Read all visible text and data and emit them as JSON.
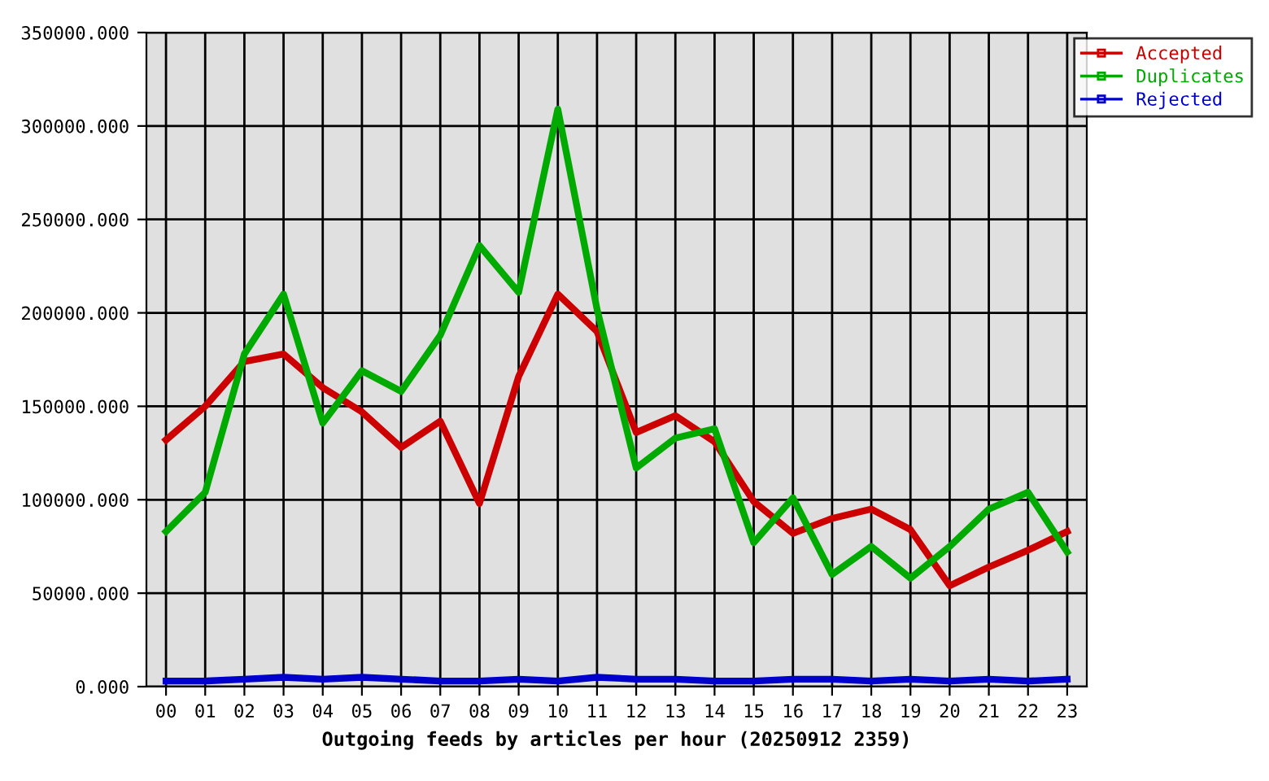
{
  "chart_data": {
    "type": "line",
    "xlabel": "Outgoing feeds by articles per hour (20250912 2359)",
    "categories": [
      "00",
      "01",
      "02",
      "03",
      "04",
      "05",
      "06",
      "07",
      "08",
      "09",
      "10",
      "11",
      "12",
      "13",
      "14",
      "15",
      "16",
      "17",
      "18",
      "19",
      "20",
      "21",
      "22",
      "23"
    ],
    "series": [
      {
        "name": "Accepted",
        "color": "#cc0000",
        "values": [
          132000,
          150000,
          174000,
          178000,
          160000,
          147000,
          128000,
          142000,
          98000,
          166000,
          210000,
          190000,
          136000,
          145000,
          131000,
          99000,
          82000,
          90000,
          95000,
          84000,
          54000,
          64000,
          73000,
          83000
        ]
      },
      {
        "name": "Duplicates",
        "color": "#00aa00",
        "values": [
          83000,
          104000,
          178000,
          210000,
          141000,
          169000,
          158000,
          188000,
          236000,
          211000,
          309000,
          202000,
          117000,
          133000,
          138000,
          77000,
          101000,
          60000,
          75000,
          58000,
          75000,
          95000,
          104000,
          72000
        ]
      },
      {
        "name": "Rejected",
        "color": "#0000cc",
        "values": [
          3000,
          3000,
          4000,
          5000,
          4000,
          5000,
          4000,
          3000,
          3000,
          4000,
          3000,
          5000,
          4000,
          4000,
          3000,
          3000,
          4000,
          4000,
          3000,
          4000,
          3000,
          4000,
          3000,
          4000
        ]
      }
    ],
    "ylim": [
      0,
      350000
    ],
    "yticks": [
      {
        "value": 0,
        "label": "0.000"
      },
      {
        "value": 50000,
        "label": "50000.000"
      },
      {
        "value": 100000,
        "label": "100000.000"
      },
      {
        "value": 150000,
        "label": "150000.000"
      },
      {
        "value": 200000,
        "label": "200000.000"
      },
      {
        "value": 250000,
        "label": "250000.000"
      },
      {
        "value": 300000,
        "label": "300000.000"
      },
      {
        "value": 350000,
        "label": "350000.000"
      }
    ],
    "grid": true,
    "legend": "top right",
    "marker": "none",
    "line_style": "solid"
  }
}
